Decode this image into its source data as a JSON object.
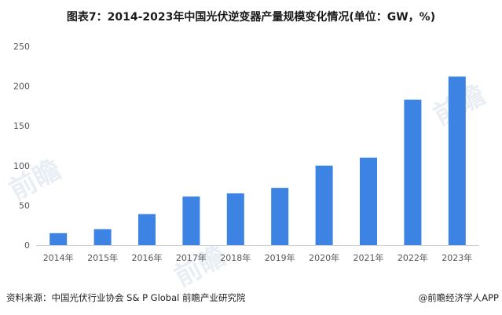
{
  "chart_data": {
    "type": "bar",
    "title": "图表7：2014-2023年中国光伏逆变器产量规模变化情况(单位：GW，%)",
    "categories": [
      "2014年",
      "2015年",
      "2016年",
      "2017年",
      "2018年",
      "2019年",
      "2020年",
      "2021年",
      "2022年",
      "2023年"
    ],
    "values": [
      15,
      20,
      39,
      61,
      65,
      72,
      100,
      110,
      183,
      212
    ],
    "ylim": [
      0,
      250
    ],
    "yticks": [
      0,
      50,
      100,
      150,
      200,
      250
    ],
    "grid": false,
    "bar_color": "#3c83e3",
    "axis_color": "#cfcfcf",
    "tick_label_color": "#555555"
  },
  "footer": {
    "source": "资料来源：中国光伏行业协会 S& P Global 前瞻产业研究院",
    "brand": "@前瞻经济学人APP"
  }
}
